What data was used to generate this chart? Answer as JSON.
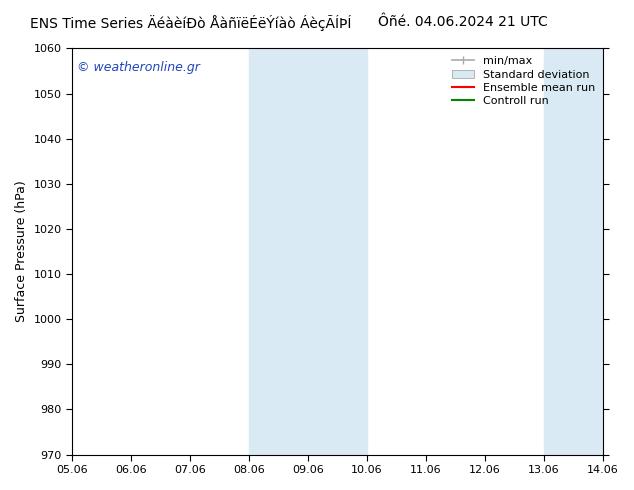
{
  "title_left_text": "ENS Time Series ÄéàèíÐò ÅàñïëÉëÝíàò ÁèçÃÍÞÍ",
  "title_right_text": "Ôñé. 04.06.2024 21 UTC",
  "ylabel": "Surface Pressure (hPa)",
  "ylim": [
    970,
    1060
  ],
  "yticks": [
    970,
    980,
    990,
    1000,
    1010,
    1020,
    1030,
    1040,
    1050,
    1060
  ],
  "xtick_labels": [
    "05.06",
    "06.06",
    "07.06",
    "08.06",
    "09.06",
    "10.06",
    "11.06",
    "12.06",
    "13.06",
    "14.06"
  ],
  "xtick_positions": [
    0,
    1,
    2,
    3,
    4,
    5,
    6,
    7,
    8,
    9
  ],
  "shaded_regions": [
    {
      "x_start": 3,
      "x_end": 5,
      "color": "#daeaf5"
    },
    {
      "x_start": 8,
      "x_end": 9,
      "color": "#daeaf5"
    }
  ],
  "bg_color": "#ffffff",
  "plot_bg_color": "#ffffff",
  "watermark_text": "© weatheronline.gr",
  "watermark_color": "#2244bb",
  "legend_items": [
    {
      "label": "min/max",
      "color": "#aaaaaa",
      "style": "errorbar"
    },
    {
      "label": "Standard deviation",
      "color": "#daeaf5",
      "style": "rect"
    },
    {
      "label": "Ensemble mean run",
      "color": "#ff0000",
      "style": "line"
    },
    {
      "label": "Controll run",
      "color": "#008800",
      "style": "line"
    }
  ],
  "font_size_title": 10,
  "font_size_axis": 9,
  "font_size_tick": 8,
  "font_size_legend": 8,
  "font_size_watermark": 9
}
